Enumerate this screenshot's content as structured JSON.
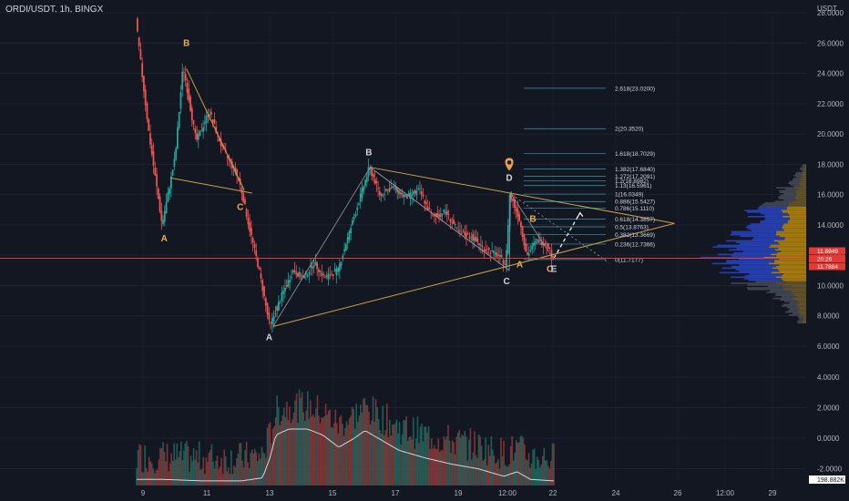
{
  "header": {
    "symbol": "ORDI/USDT, 1h, BINGX",
    "unit": "USDT"
  },
  "chart_data": {
    "type": "candlestick",
    "price_axis": {
      "ticks": [
        "28.0000",
        "26.0000",
        "24.0000",
        "22.0000",
        "20.0000",
        "18.0000",
        "16.0000",
        "14.0000",
        "12.0000",
        "10.0000",
        "8.0000",
        "6.0000"
      ],
      "ylim": [
        5.5,
        28.5
      ]
    },
    "volume_axis": {
      "ticks": [
        "4.0000",
        "2.0000",
        "0.0000",
        "-2.0000"
      ],
      "ylim": [
        -3.2,
        5.0
      ]
    },
    "x_ticks": [
      "9",
      "11",
      "13",
      "15",
      "17",
      "19",
      "12:00",
      "22",
      "24",
      "26",
      "12:00",
      "29"
    ],
    "price_path": [
      {
        "t": 0.0,
        "p": 27.5
      },
      {
        "t": 0.5,
        "p": 20.0
      },
      {
        "t": 1.0,
        "p": 14.0
      },
      {
        "t": 1.5,
        "p": 18.5
      },
      {
        "t": 1.8,
        "p": 24.5
      },
      {
        "t": 2.3,
        "p": 19.5
      },
      {
        "t": 2.8,
        "p": 21.5
      },
      {
        "t": 3.3,
        "p": 19.0
      },
      {
        "t": 3.8,
        "p": 17.5
      },
      {
        "t": 4.0,
        "p": 16.5
      },
      {
        "t": 4.3,
        "p": 14.0
      },
      {
        "t": 4.7,
        "p": 11.0
      },
      {
        "t": 5.1,
        "p": 7.3
      },
      {
        "t": 5.6,
        "p": 9.5
      },
      {
        "t": 6.0,
        "p": 11.0
      },
      {
        "t": 6.4,
        "p": 10.5
      },
      {
        "t": 6.8,
        "p": 11.5
      },
      {
        "t": 7.2,
        "p": 10.5
      },
      {
        "t": 7.7,
        "p": 11.0
      },
      {
        "t": 8.4,
        "p": 15.0
      },
      {
        "t": 8.9,
        "p": 17.8
      },
      {
        "t": 9.3,
        "p": 16.0
      },
      {
        "t": 9.8,
        "p": 16.5
      },
      {
        "t": 10.3,
        "p": 15.8
      },
      {
        "t": 10.8,
        "p": 16.3
      },
      {
        "t": 11.3,
        "p": 14.5
      },
      {
        "t": 11.8,
        "p": 14.9
      },
      {
        "t": 12.3,
        "p": 13.5
      },
      {
        "t": 12.8,
        "p": 13.2
      },
      {
        "t": 13.3,
        "p": 12.4
      },
      {
        "t": 13.8,
        "p": 12.0
      },
      {
        "t": 14.1,
        "p": 11.4
      },
      {
        "t": 14.25,
        "p": 16.0
      },
      {
        "t": 14.6,
        "p": 14.5
      },
      {
        "t": 14.9,
        "p": 12.0
      },
      {
        "t": 15.3,
        "p": 13.0
      },
      {
        "t": 15.7,
        "p": 12.7
      },
      {
        "t": 15.9,
        "p": 11.7
      }
    ],
    "volume_path": [
      {
        "t": 0.0,
        "v": -2.7
      },
      {
        "t": 1.0,
        "v": -2.7
      },
      {
        "t": 2.5,
        "v": -2.8
      },
      {
        "t": 4.0,
        "v": -2.8
      },
      {
        "t": 4.8,
        "v": -2.6
      },
      {
        "t": 5.1,
        "v": -1.2
      },
      {
        "t": 5.3,
        "v": 0.2
      },
      {
        "t": 5.8,
        "v": 0.6
      },
      {
        "t": 6.5,
        "v": 0.6
      },
      {
        "t": 7.1,
        "v": 0.2
      },
      {
        "t": 7.7,
        "v": -0.6
      },
      {
        "t": 8.3,
        "v": 0.0
      },
      {
        "t": 8.7,
        "v": 0.5
      },
      {
        "t": 9.4,
        "v": -0.2
      },
      {
        "t": 10.0,
        "v": -0.8
      },
      {
        "t": 11.0,
        "v": -1.3
      },
      {
        "t": 12.0,
        "v": -1.7
      },
      {
        "t": 13.0,
        "v": -2.0
      },
      {
        "t": 14.0,
        "v": -2.5
      },
      {
        "t": 14.5,
        "v": -2.2
      },
      {
        "t": 15.0,
        "v": -2.7
      },
      {
        "t": 15.9,
        "v": -2.8
      }
    ],
    "wave_labels": [
      {
        "text": "B",
        "t": 1.9,
        "p": 25.8,
        "color": "#e8b04c"
      },
      {
        "text": "A",
        "t": 1.05,
        "p": 12.9,
        "color": "#e8b04c"
      },
      {
        "text": "C",
        "t": 3.95,
        "p": 15.0,
        "color": "#e8b04c"
      },
      {
        "text": "B",
        "t": 8.85,
        "p": 18.6,
        "color": "#d1d4dc"
      },
      {
        "text": "A",
        "t": 5.05,
        "p": 6.4,
        "color": "#d1d4dc"
      },
      {
        "text": "C",
        "t": 14.1,
        "p": 10.1,
        "color": "#d1d4dc"
      },
      {
        "text": "D",
        "t": 14.2,
        "p": 16.9,
        "color": "#d1d4dc"
      },
      {
        "text": "A",
        "t": 14.6,
        "p": 11.2,
        "color": "#e8b04c"
      },
      {
        "text": "B",
        "t": 15.1,
        "p": 14.2,
        "color": "#e8b04c"
      },
      {
        "text": "C",
        "t": 15.75,
        "p": 10.9,
        "color": "#e8b04c"
      },
      {
        "text": "E",
        "t": 15.9,
        "p": 10.9,
        "color": "#d1d4dc"
      }
    ],
    "fib_levels": [
      {
        "label": "2.618(23.0200)",
        "p": 23.02
      },
      {
        "label": "2(20.3520)",
        "p": 20.352
      },
      {
        "label": "1.618(18.7029)",
        "p": 18.7029
      },
      {
        "label": "1.382(17.6840)",
        "p": 17.684
      },
      {
        "label": "1.272(17.2091)",
        "p": 17.2091
      },
      {
        "label": "1.2(16.8982)",
        "p": 16.8982
      },
      {
        "label": "1.13(16.5961)",
        "p": 16.5961
      },
      {
        "label": "1(16.0349)",
        "p": 16.0349
      },
      {
        "label": "0.886(15.5427)",
        "p": 15.5427
      },
      {
        "label": "0.786(15.1110)",
        "p": 15.111
      },
      {
        "label": "0.618(14.3857)",
        "p": 14.3857
      },
      {
        "label": "0.5(13.8763)",
        "p": 13.8763
      },
      {
        "label": "0.382(13.3669)",
        "p": 13.3669
      },
      {
        "label": "0.236(12.7366)",
        "p": 12.7366
      },
      {
        "label": "0(11.7177)",
        "p": 11.7177
      }
    ],
    "price_badges": [
      {
        "text": "11.8949",
        "color": "#e53935"
      },
      {
        "text": "20:26",
        "color": "#e53935"
      },
      {
        "text": "11.7884",
        "color": "#e53935"
      }
    ],
    "volume_badge": "198.882K",
    "current_price": 11.8,
    "colors": {
      "up": "#26a69a",
      "down": "#ef5350",
      "pattern": "#c9a24a",
      "triangle": "#c9a24a",
      "fib": "#4dd0e1",
      "price_line": "#e53935"
    }
  }
}
